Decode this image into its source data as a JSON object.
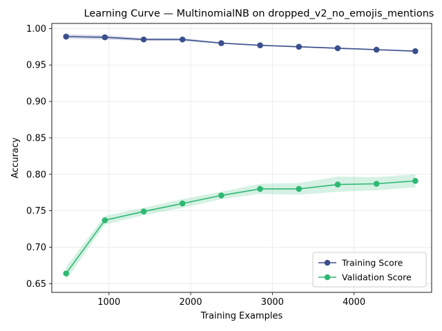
{
  "chart_data": {
    "type": "line",
    "title": "Learning Curve — MultinomialNB on dropped_v2_no_emojis_mentions",
    "xlabel": "Training Examples",
    "ylabel": "Accuracy",
    "xlim": [
      300,
      4950
    ],
    "ylim": [
      0.638,
      1.007
    ],
    "x_ticks": [
      1000,
      2000,
      3000,
      4000
    ],
    "y_ticks": [
      0.65,
      0.7,
      0.75,
      0.8,
      0.85,
      0.9,
      0.95,
      1.0
    ],
    "x_tick_labels": [
      "1000",
      "2000",
      "3000",
      "4000"
    ],
    "y_tick_labels": [
      "0.65",
      "0.70",
      "0.75",
      "0.80",
      "0.85",
      "0.90",
      "0.95",
      "1.00"
    ],
    "grid": true,
    "legend_position": "lower-right",
    "x": [
      475,
      950,
      1425,
      1900,
      2375,
      2850,
      3325,
      3800,
      4275,
      4750
    ],
    "series": [
      {
        "name": "Training Score",
        "color": "#3b4f8c",
        "band_color": "#3b4f8c",
        "values": [
          0.989,
          0.988,
          0.985,
          0.985,
          0.98,
          0.977,
          0.975,
          0.973,
          0.971,
          0.969
        ],
        "lower": [
          0.986,
          0.985,
          0.983,
          0.983,
          0.979,
          0.976,
          0.974,
          0.972,
          0.97,
          0.968
        ],
        "upper": [
          0.992,
          0.991,
          0.987,
          0.987,
          0.981,
          0.978,
          0.976,
          0.974,
          0.972,
          0.97
        ]
      },
      {
        "name": "Validation Score",
        "color": "#2eb872",
        "band_color": "#2eb872",
        "values": [
          0.664,
          0.737,
          0.749,
          0.76,
          0.771,
          0.78,
          0.78,
          0.786,
          0.787,
          0.791
        ],
        "lower": [
          0.655,
          0.731,
          0.744,
          0.754,
          0.766,
          0.773,
          0.772,
          0.776,
          0.778,
          0.782
        ],
        "upper": [
          0.673,
          0.743,
          0.754,
          0.766,
          0.776,
          0.787,
          0.788,
          0.797,
          0.796,
          0.8
        ]
      }
    ]
  }
}
